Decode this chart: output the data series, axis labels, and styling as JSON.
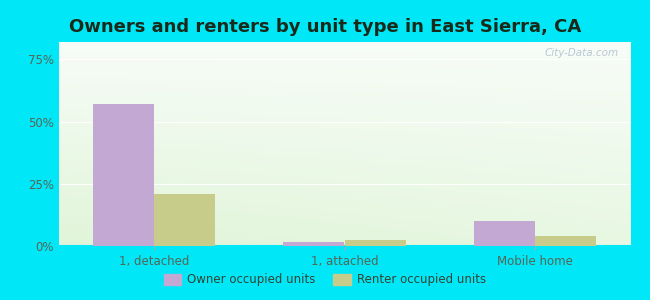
{
  "title": "Owners and renters by unit type in East Sierra, CA",
  "categories": [
    "1, detached",
    "1, attached",
    "Mobile home"
  ],
  "owner_values": [
    57,
    1.5,
    10
  ],
  "renter_values": [
    21,
    2.5,
    4
  ],
  "owner_color": "#c4a8d4",
  "renter_color": "#c8cc8a",
  "background_outer": "#00e8f8",
  "yticks": [
    0,
    25,
    50,
    75
  ],
  "ylim": [
    0,
    82
  ],
  "bar_width": 0.32,
  "title_fontsize": 13,
  "tick_fontsize": 8.5,
  "legend_labels": [
    "Owner occupied units",
    "Renter occupied units"
  ],
  "watermark": "City-Data.com"
}
